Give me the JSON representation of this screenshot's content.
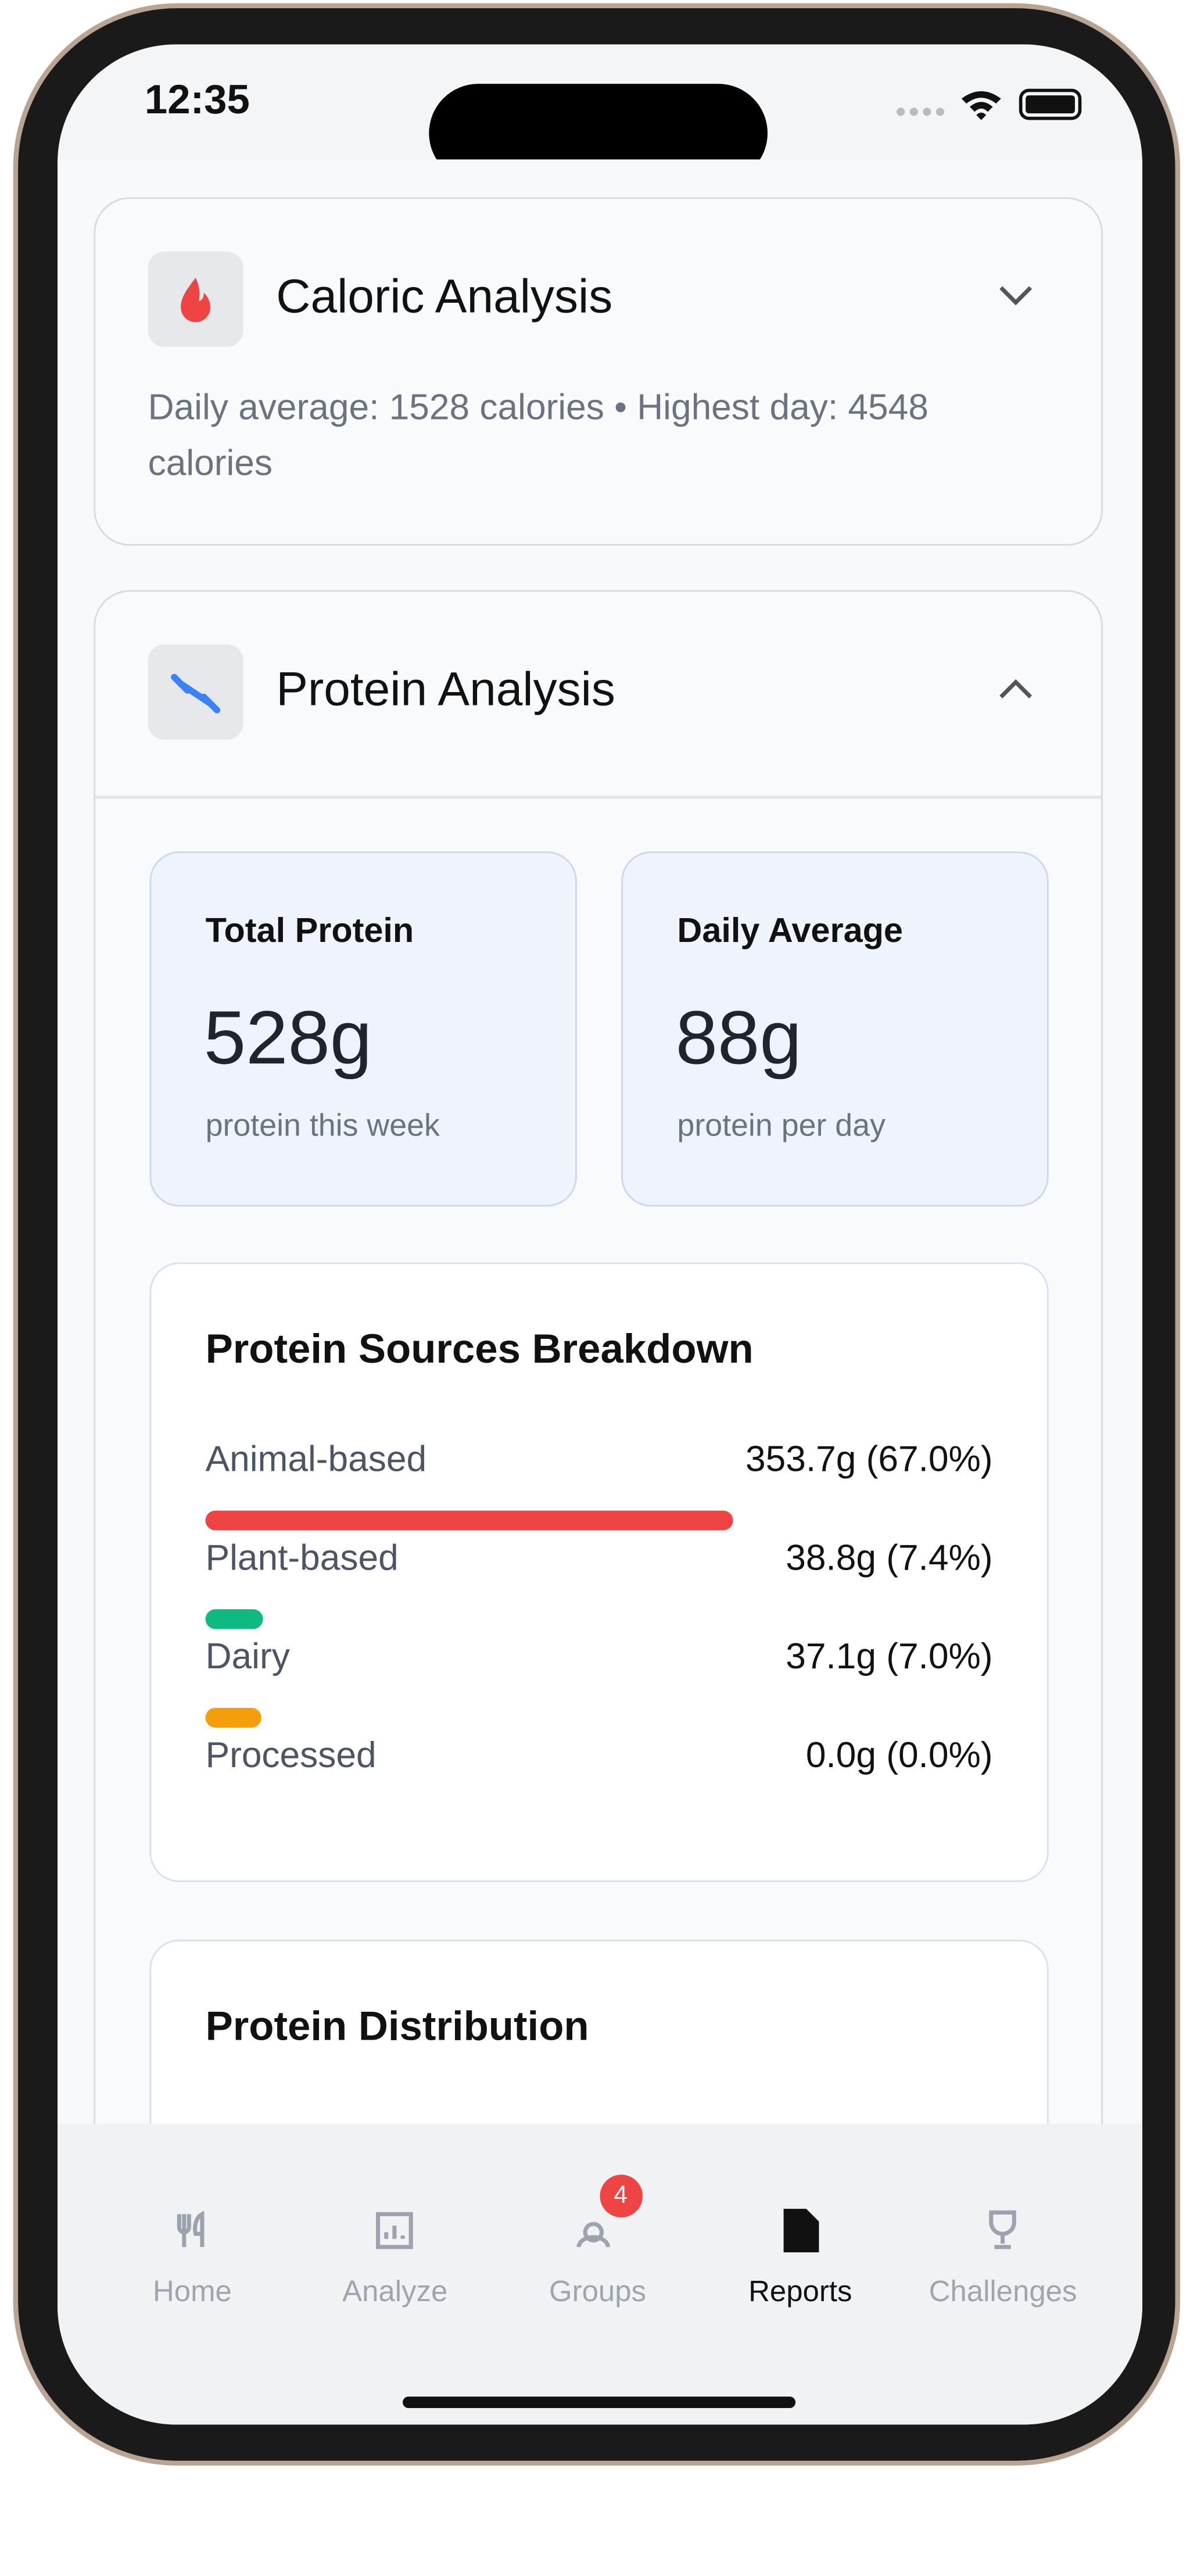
{
  "status_bar": {
    "time": "12:35"
  },
  "caloric_analysis": {
    "title": "Caloric Analysis",
    "summary": "Daily average: 1528 calories • Highest day: 4548 calories"
  },
  "protein_analysis": {
    "title": "Protein Analysis",
    "stats": [
      {
        "label": "Total Protein",
        "value": "528g",
        "caption": "protein this week"
      },
      {
        "label": "Daily Average",
        "value": "88g",
        "caption": "protein per day"
      }
    ],
    "breakdown": {
      "title": "Protein Sources Breakdown",
      "sources": [
        {
          "name": "Animal-based",
          "value_label": "353.7g (67.0%)",
          "percent": 67.0,
          "color": "#ef4444"
        },
        {
          "name": "Plant-based",
          "value_label": "38.8g (7.4%)",
          "percent": 7.4,
          "color": "#10b981"
        },
        {
          "name": "Dairy",
          "value_label": "37.1g (7.0%)",
          "percent": 7.0,
          "color": "#f59e0b"
        },
        {
          "name": "Processed",
          "value_label": "0.0g (0.0%)",
          "percent": 0.0,
          "color": "#8b5cf6"
        }
      ]
    },
    "distribution": {
      "title": "Protein Distribution"
    }
  },
  "tab_bar": {
    "tabs": [
      {
        "label": "Home"
      },
      {
        "label": "Analyze"
      },
      {
        "label": "Groups",
        "badge": "4"
      },
      {
        "label": "Reports"
      },
      {
        "label": "Challenges"
      }
    ]
  }
}
